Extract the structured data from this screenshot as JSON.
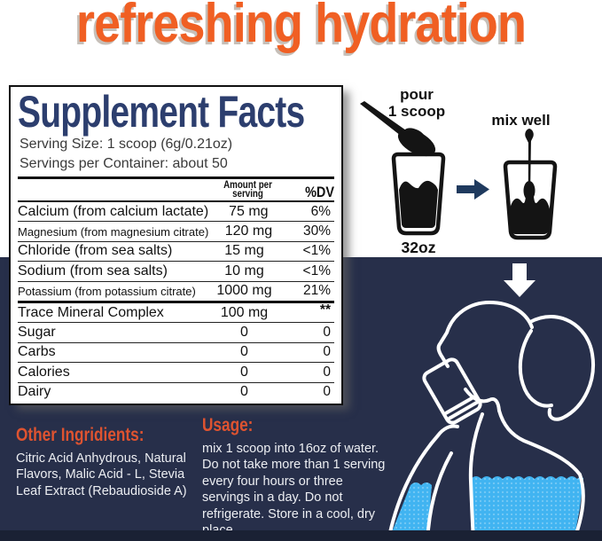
{
  "title": "refreshing hydration",
  "panel": {
    "title": "Supplement Facts",
    "serving_size": "Serving Size: 1 scoop (6g/0.21oz)",
    "servings_per_container": "Servings per Container: about 50",
    "col_amount_line1": "Amount per",
    "col_amount_line2": "serving",
    "col_dv": "%DV",
    "rows": [
      {
        "name": "Calcium (from calcium lactate)",
        "amount": "75 mg",
        "dv": "6%",
        "small": false,
        "thick_top": false
      },
      {
        "name": "Magnesium (from magnesium citrate)",
        "amount": "120 mg",
        "dv": "30%",
        "small": true,
        "thick_top": false
      },
      {
        "name": "Chloride (from sea salts)",
        "amount": "15 mg",
        "dv": "<1%",
        "small": false,
        "thick_top": false
      },
      {
        "name": "Sodium (from sea salts)",
        "amount": "10 mg",
        "dv": "<1%",
        "small": false,
        "thick_top": false
      },
      {
        "name": "Potassium (from potassium citrate)",
        "amount": "1000 mg",
        "dv": "21%",
        "small": true,
        "thick_top": false
      },
      {
        "name": "Trace Mineral Complex",
        "amount": "100 mg",
        "dv": "**",
        "small": false,
        "thick_top": true,
        "dv_sup": true
      },
      {
        "name": "Sugar",
        "amount": "0",
        "dv": "0",
        "small": false,
        "thick_top": false
      },
      {
        "name": "Carbs",
        "amount": "0",
        "dv": "0",
        "small": false,
        "thick_top": false
      },
      {
        "name": "Calories",
        "amount": "0",
        "dv": "0",
        "small": false,
        "thick_top": false
      },
      {
        "name": "Dairy",
        "amount": "0",
        "dv": "0",
        "small": false,
        "thick_top": false
      }
    ]
  },
  "instructions": {
    "pour_line1": "pour",
    "pour_line2": "1 scoop",
    "mix_label": "mix well",
    "cup_size": "32oz"
  },
  "other_ingredients": {
    "heading": "Other Ingridients:",
    "text": "Citric Acid Anhydrous, Natural Flavors, Malic Acid - L, Stevia Leaf Extract (Rebaudioside A)"
  },
  "usage": {
    "heading": "Usage:",
    "text": "mix 1 scoop into 16oz of water. Do not take more than 1 serving every four hours or three servings in a day. Do not refrigerate. Store in a cool, dry place."
  },
  "icons": {
    "pour_spoon": "spoon-with-powder-icon",
    "left_cup": "cup-32oz-icon",
    "right_arrow": "arrow-right-icon",
    "mix_cup": "cup-stirring-spoon-icon",
    "down_arrow": "arrow-down-icon",
    "woman": "woman-drinking-illustration"
  },
  "colors": {
    "title_orange": "#f05f23",
    "facts_navy": "#2c3e6e",
    "background_navy": "#272f4a",
    "bottom_bar": "#1a2134",
    "heading_red": "#de5330",
    "water_blue": "#41b4f1",
    "arrow_navy": "#1f3a5e"
  }
}
